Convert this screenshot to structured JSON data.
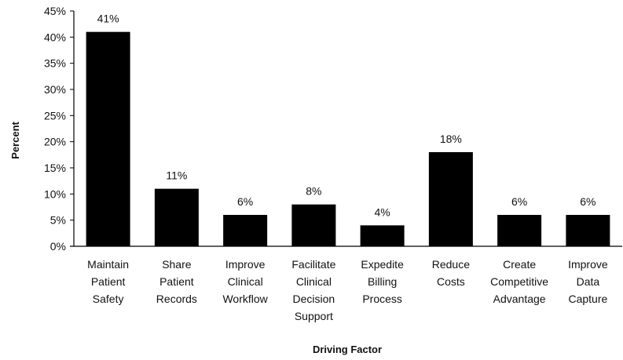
{
  "chart_data": {
    "type": "bar",
    "title": "",
    "xlabel": "Driving Factor",
    "ylabel": "Percent",
    "ylim": [
      0,
      45
    ],
    "yticks": [
      "0%",
      "5%",
      "10%",
      "15%",
      "20%",
      "25%",
      "30%",
      "35%",
      "40%",
      "45%"
    ],
    "grid": false,
    "categories": [
      [
        "Maintain",
        "Patient",
        "Safety"
      ],
      [
        "Share",
        "Patient",
        "Records"
      ],
      [
        "Improve",
        "Clinical",
        "Workflow"
      ],
      [
        "Facilitate",
        "Clinical",
        "Decision",
        "Support"
      ],
      [
        "Expedite",
        "Billing",
        "Process"
      ],
      [
        "Reduce",
        "Costs"
      ],
      [
        "Create",
        "Competitive",
        "Advantage"
      ],
      [
        "Improve",
        "Data",
        "Capture"
      ]
    ],
    "values": [
      41,
      11,
      6,
      8,
      4,
      18,
      6,
      6
    ],
    "data_labels": [
      "41%",
      "11%",
      "6%",
      "8%",
      "4%",
      "18%",
      "6%",
      "6%"
    ],
    "bar_color": "#000000"
  }
}
